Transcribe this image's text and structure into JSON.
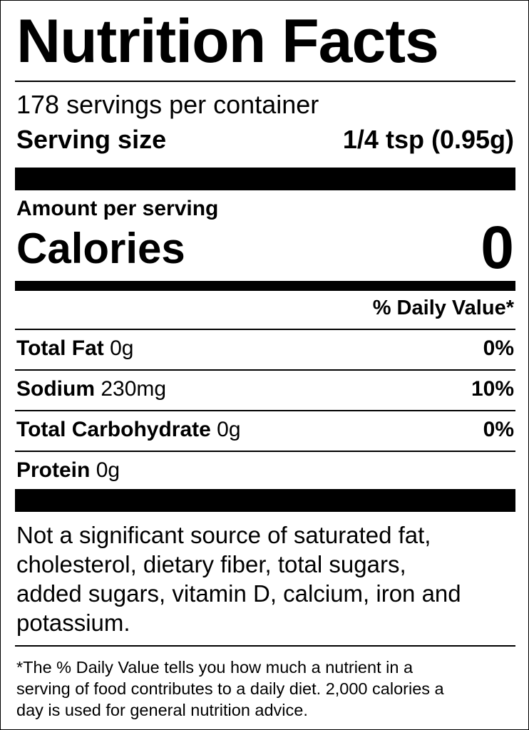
{
  "header": {
    "title": "Nutrition Facts",
    "servings": "178 servings per container",
    "serving_size_label": "Serving size",
    "serving_size_value": "1/4 tsp (0.95g)"
  },
  "calories": {
    "amount_label": "Amount per serving",
    "label": "Calories",
    "value": "0"
  },
  "daily_value_header": "% Daily Value*",
  "nutrients": [
    {
      "name": "Total Fat",
      "amount": "0g",
      "dv": "0%"
    },
    {
      "name": "Sodium",
      "amount": "230mg",
      "dv": "10%"
    },
    {
      "name": "Total Carbohydrate",
      "amount": "0g",
      "dv": "0%"
    },
    {
      "name": "Protein",
      "amount": "0g"
    }
  ],
  "note": {
    "lines": [
      "Not a significant source of saturated fat,",
      "cholesterol, dietary fiber, total sugars,",
      "added sugars, vitamin D, calcium, iron and",
      "potassium."
    ]
  },
  "footnote": {
    "lines": [
      "*The % Daily Value tells you how much a nutrient in a",
      "serving of food contributes to a daily diet. 2,000 calories a",
      "day is used for general nutrition advice."
    ]
  }
}
